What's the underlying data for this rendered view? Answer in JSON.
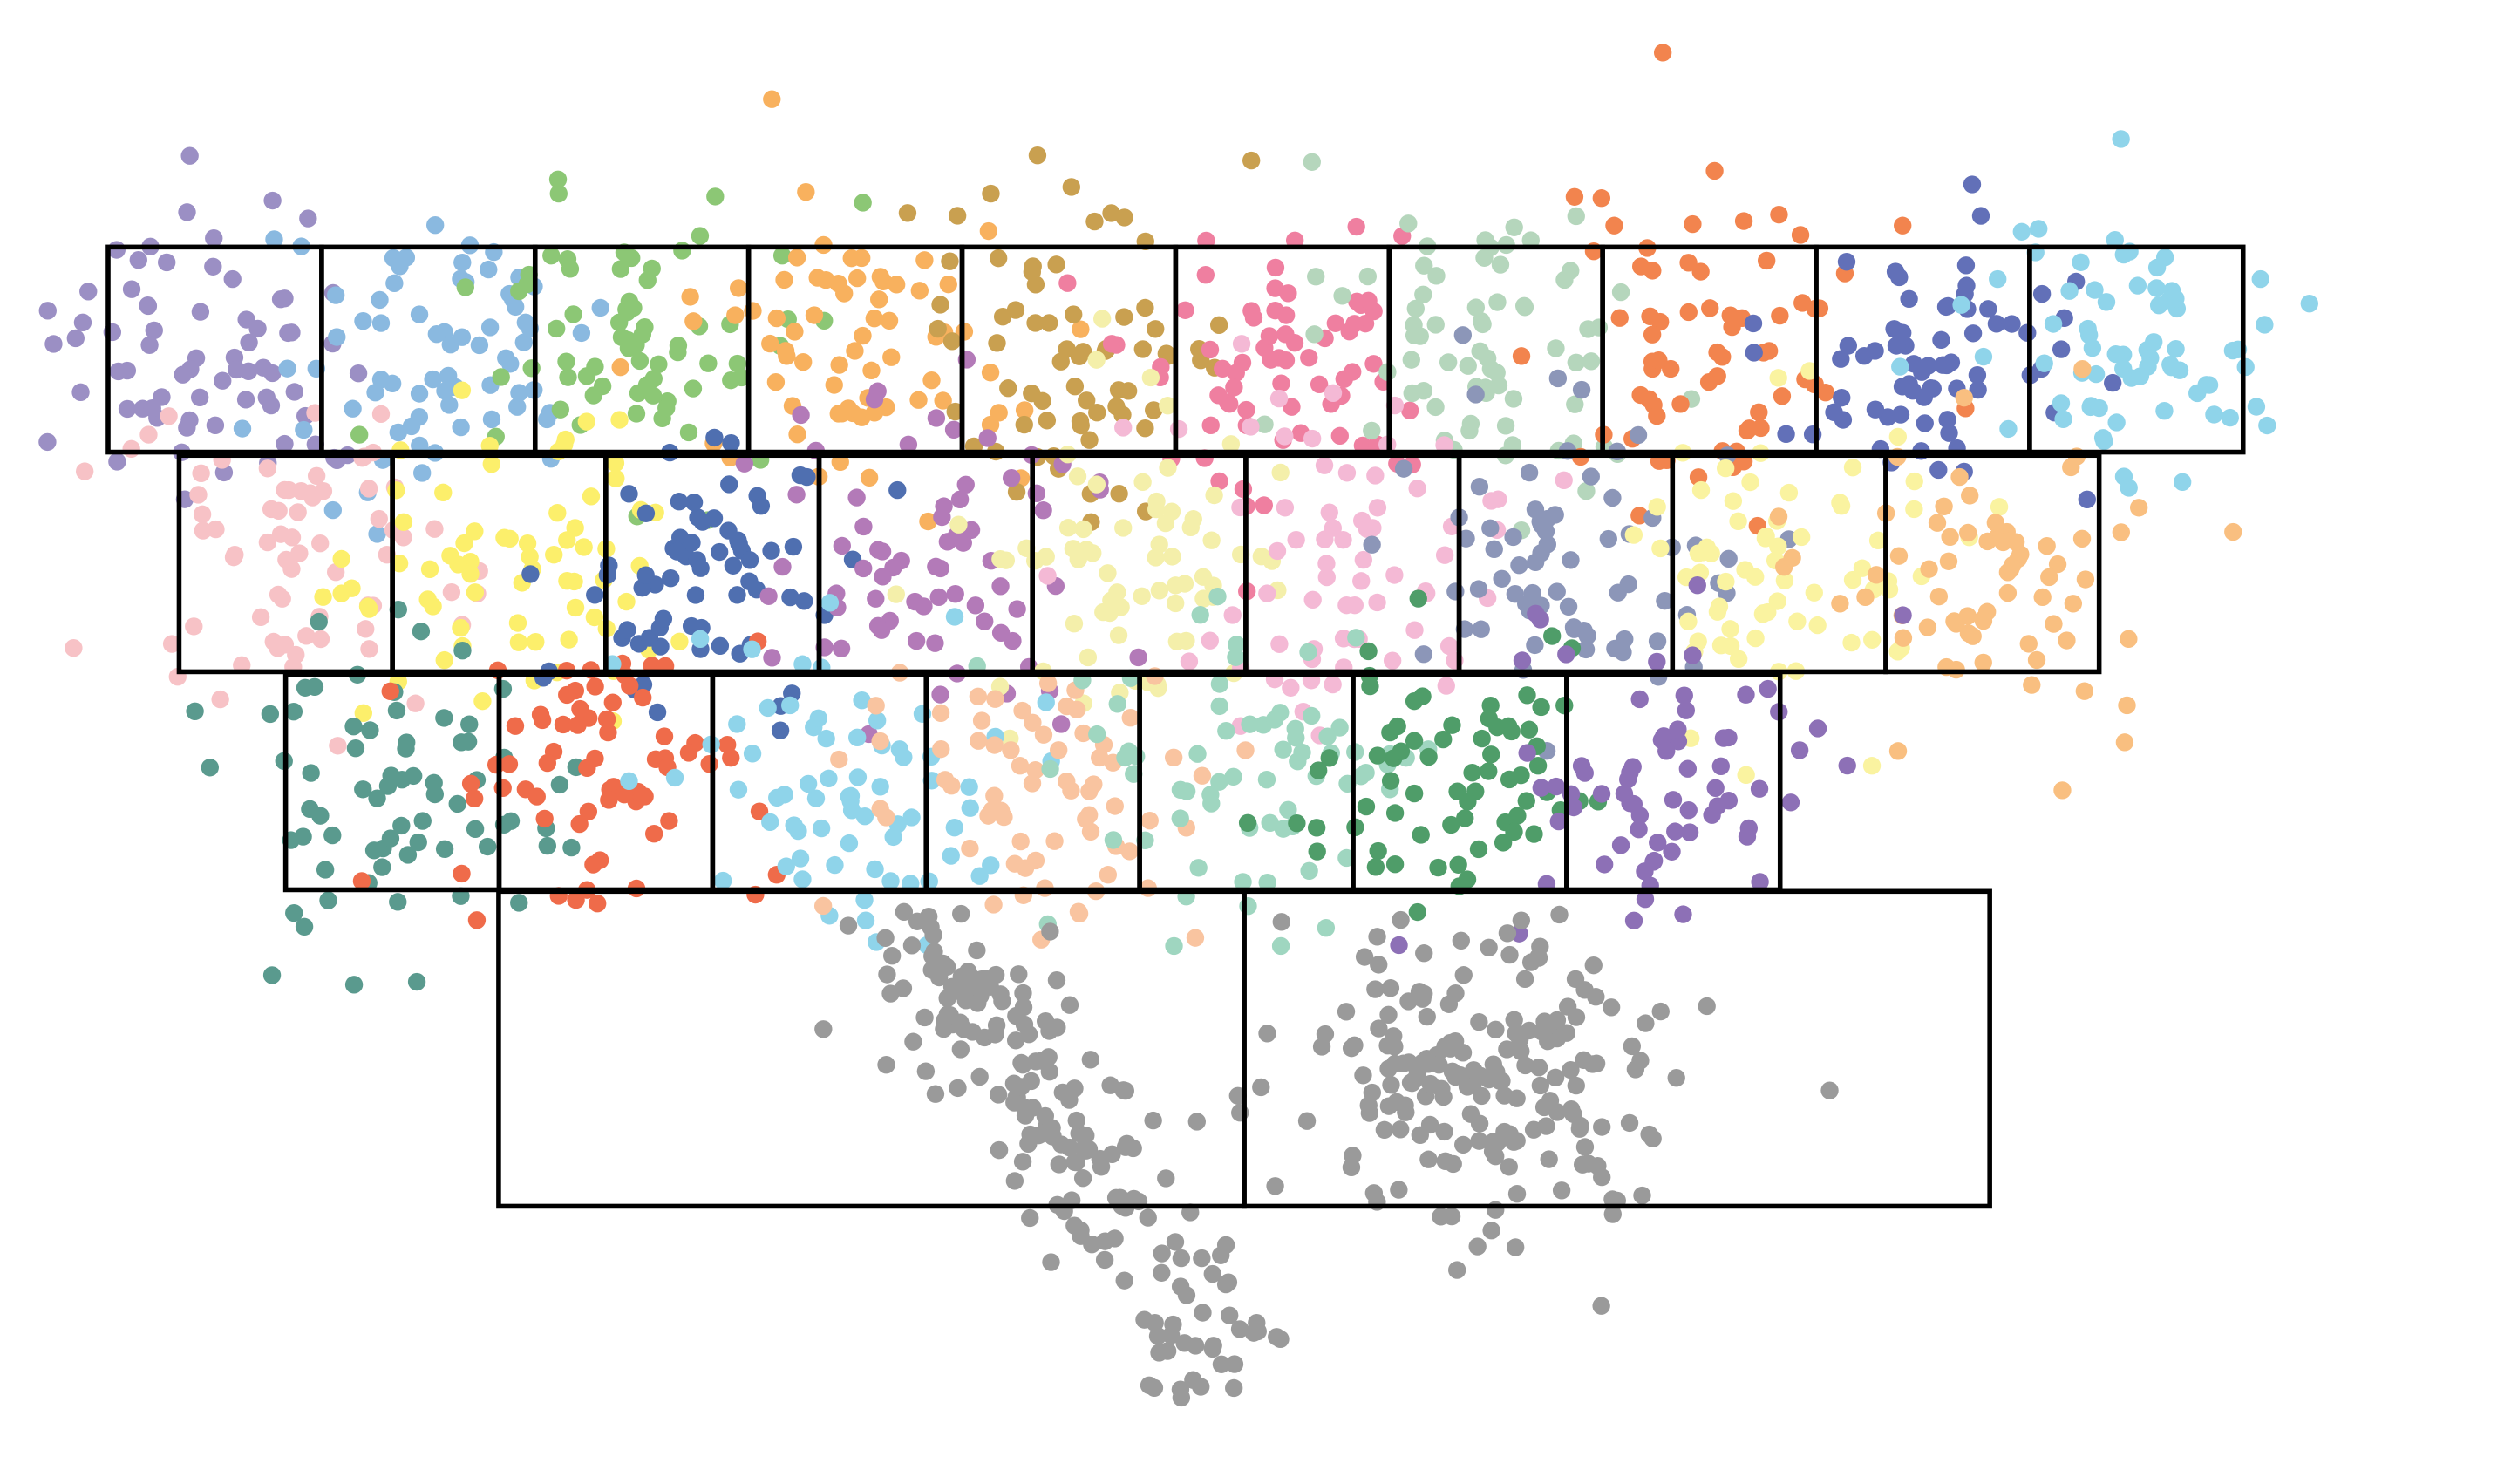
{
  "rows": [
    {
      "cells": [
        {
          "color": "#9b8fc4"
        },
        {
          "color": "#8ab9e0"
        },
        {
          "color": "#8cc775"
        },
        {
          "color": "#f8b15e"
        },
        {
          "color": "#c9a050"
        },
        {
          "color": "#ef7fa0"
        },
        {
          "color": "#b5d6bc"
        },
        {
          "color": "#f2844e"
        },
        {
          "color": "#6270b8"
        },
        {
          "color": "#8fd4ea"
        }
      ]
    },
    {
      "cells": [
        {
          "color": "#f7c2c6"
        },
        {
          "color": "#fcef6b"
        },
        {
          "color": "#4f6fb0"
        },
        {
          "color": "#b37ab8"
        },
        {
          "color": "#f4efaa"
        },
        {
          "color": "#f4b9d5"
        },
        {
          "color": "#8c96b8"
        },
        {
          "color": "#faf3a0"
        },
        {
          "color": "#f9bf80"
        }
      ]
    },
    {
      "cells": [
        {
          "color": "#5a9a8e"
        },
        {
          "color": "#ef6b4a"
        },
        {
          "color": "#8fd4ea"
        },
        {
          "color": "#f9c4a0"
        },
        {
          "color": "#9fd6c0"
        },
        {
          "color": "#4f9d69"
        },
        {
          "color": "#8d70b6"
        }
      ]
    },
    {
      "cells": [
        {
          "color": "#9a9a9a"
        },
        {
          "color": "#9a9a9a"
        }
      ]
    }
  ]
}
